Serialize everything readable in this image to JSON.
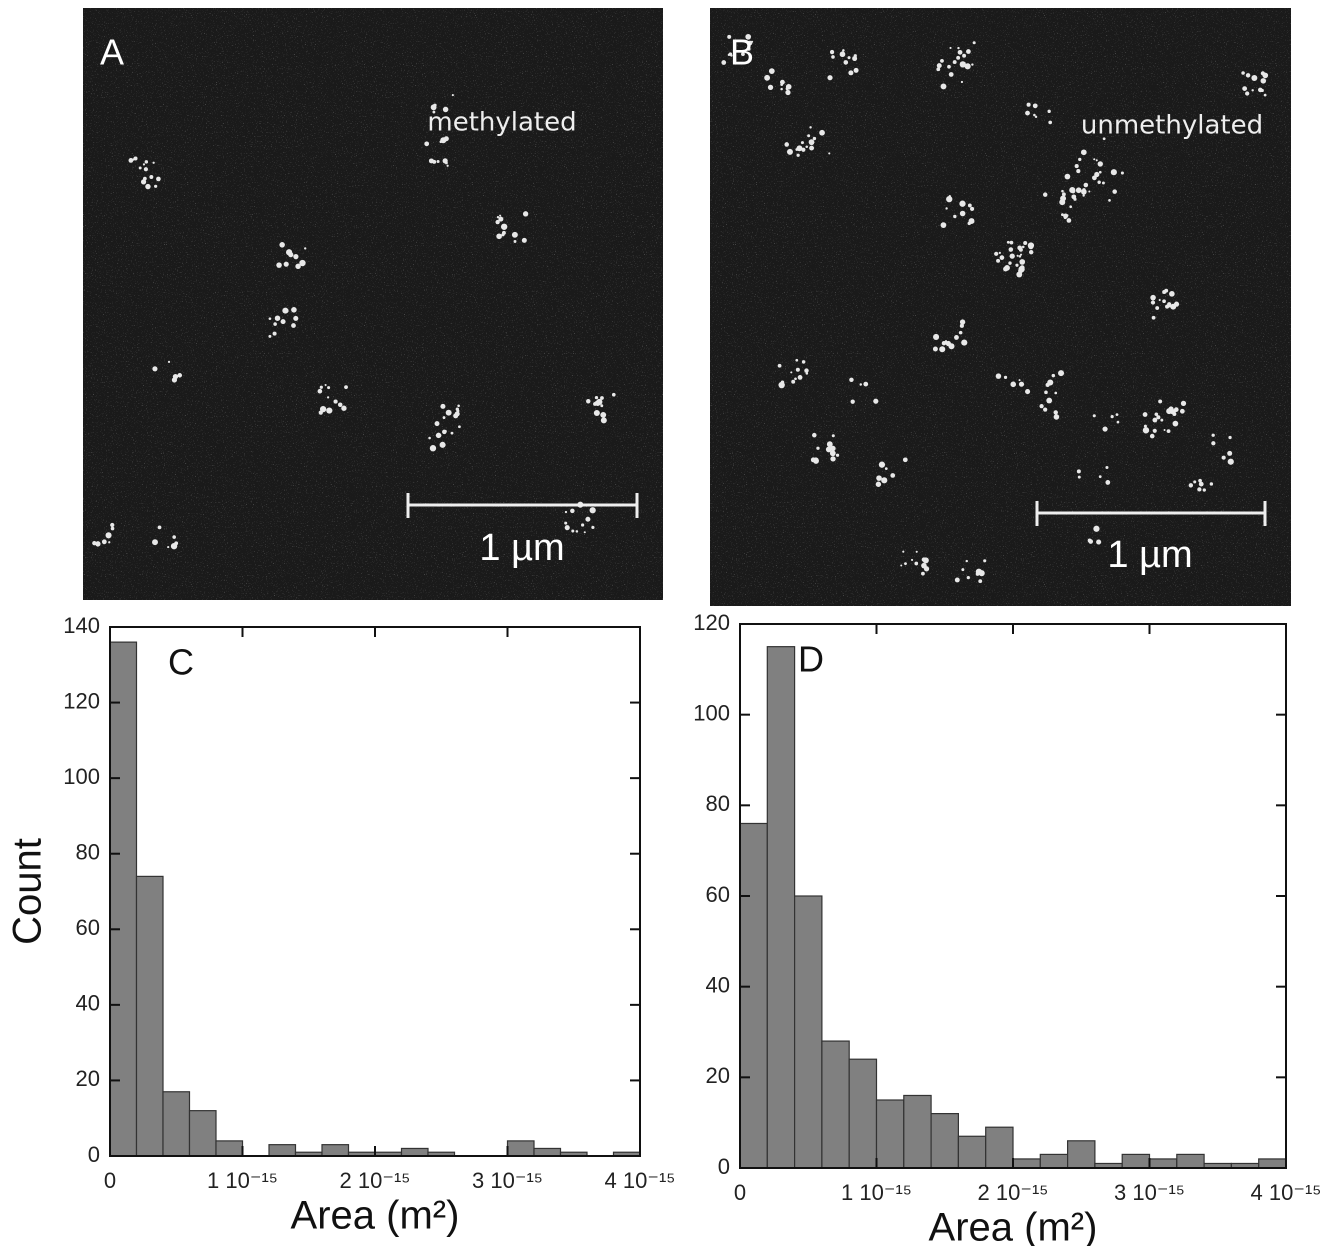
{
  "panels": [
    {
      "label": "A",
      "caption": "methylated",
      "scale_bar": "1 µm"
    },
    {
      "label": "B",
      "caption": "unmethylated",
      "scale_bar": "1 µm"
    }
  ],
  "chart_data": [
    {
      "type": "histogram",
      "annotation": "C",
      "x_label": "Area (m²)",
      "y_label": "Count",
      "color": "#808080",
      "bins": [
        0,
        2e-16,
        4e-16,
        6e-16,
        8e-16,
        1e-15,
        1.2e-15,
        1.4e-15,
        1.6e-15,
        1.8e-15,
        2e-15,
        2.2e-15,
        2.4e-15,
        2.6e-15,
        2.8e-15,
        3e-15,
        3.2e-15,
        3.4e-15,
        3.6e-15,
        3.8e-15,
        4e-15
      ],
      "values": [
        136,
        74,
        17,
        12,
        4,
        0,
        3,
        1,
        3,
        1,
        1,
        2,
        1,
        0,
        0,
        4,
        2,
        1,
        0,
        1
      ],
      "xlim": [
        0,
        4e-15
      ],
      "ylim": [
        0,
        140
      ],
      "xticks": [
        0,
        {
          "value": 1e-15,
          "label": "1 10⁻¹⁵"
        },
        {
          "value": 2e-15,
          "label": "2 10⁻¹⁵"
        },
        {
          "value": 3e-15,
          "label": "3 10⁻¹⁵"
        },
        {
          "value": 4e-15,
          "label": "4 10⁻¹⁵"
        }
      ],
      "yticks": [
        0,
        20,
        40,
        60,
        80,
        100,
        120,
        140
      ]
    },
    {
      "type": "histogram",
      "annotation": "D",
      "x_label": "Area (m²)",
      "color": "#808080",
      "bins": [
        0,
        2e-16,
        4e-16,
        6e-16,
        8e-16,
        1e-15,
        1.2e-15,
        1.4e-15,
        1.6e-15,
        1.8e-15,
        2e-15,
        2.2e-15,
        2.4e-15,
        2.6e-15,
        2.8e-15,
        3e-15,
        3.2e-15,
        3.4e-15,
        3.6e-15,
        3.8e-15,
        4e-15
      ],
      "values": [
        76,
        115,
        60,
        28,
        24,
        15,
        16,
        12,
        7,
        9,
        2,
        3,
        6,
        1,
        3,
        2,
        3,
        1,
        1,
        2
      ],
      "xlim": [
        0,
        4e-15
      ],
      "ylim": [
        0,
        120
      ],
      "xticks": [
        0,
        {
          "value": 1e-15,
          "label": "1 10⁻¹⁵"
        },
        {
          "value": 2e-15,
          "label": "2 10⁻¹⁵"
        },
        {
          "value": 3e-15,
          "label": "3 10⁻¹⁵"
        },
        {
          "value": 4e-15,
          "label": "4 10⁻¹⁵"
        }
      ],
      "yticks": [
        0,
        20,
        40,
        60,
        80,
        100,
        120
      ]
    }
  ]
}
